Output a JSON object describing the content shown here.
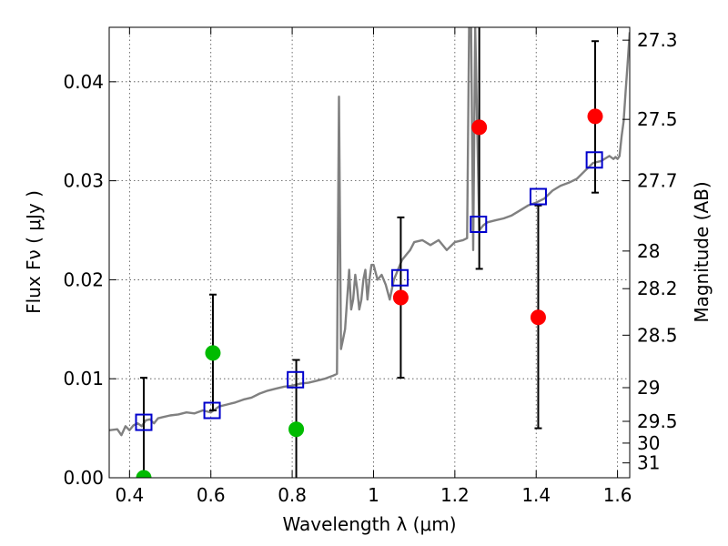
{
  "chart_data": {
    "type": "scatter",
    "xlabel": "Wavelength  λ (μm)",
    "ylabel": "Flux  Fν  ( μJy )",
    "y2label": "Magnitude (AB)",
    "xlim": [
      0.35,
      1.63
    ],
    "ylim": [
      0.0,
      0.0455
    ],
    "x_ticks": [
      0.4,
      0.6,
      0.8,
      1.0,
      1.2,
      1.4,
      1.6
    ],
    "x_tick_labels": [
      "0.4",
      "0.6",
      "0.8",
      "1",
      "1.2",
      "1.4",
      "1.6"
    ],
    "y_ticks": [
      0.0,
      0.01,
      0.02,
      0.03,
      0.04
    ],
    "y_tick_labels": [
      "0.00",
      "0.01",
      "0.02",
      "0.03",
      "0.04"
    ],
    "y2_ticks": [
      {
        "label": "27.3",
        "flux": 0.0442
      },
      {
        "label": "27.5",
        "flux": 0.0362
      },
      {
        "label": "27.7",
        "flux": 0.03
      },
      {
        "label": "28",
        "flux": 0.0229
      },
      {
        "label": "28.2",
        "flux": 0.0191
      },
      {
        "label": "28.5",
        "flux": 0.0144
      },
      {
        "label": "29",
        "flux": 0.0091
      },
      {
        "label": "29.5",
        "flux": 0.0057
      },
      {
        "label": "30",
        "flux": 0.0035
      },
      {
        "label": "31",
        "flux": 0.0015
      }
    ],
    "grid": true,
    "series": [
      {
        "marker": "line",
        "color": "#808080",
        "x": [
          0.35,
          0.37,
          0.38,
          0.39,
          0.4,
          0.41,
          0.42,
          0.43,
          0.44,
          0.45,
          0.46,
          0.47,
          0.48,
          0.5,
          0.52,
          0.54,
          0.56,
          0.58,
          0.6,
          0.62,
          0.64,
          0.66,
          0.68,
          0.7,
          0.72,
          0.74,
          0.76,
          0.78,
          0.8,
          0.82,
          0.84,
          0.86,
          0.88,
          0.9,
          0.91,
          0.915,
          0.92,
          0.925,
          0.93,
          0.94,
          0.945,
          0.95,
          0.955,
          0.96,
          0.965,
          0.97,
          0.975,
          0.98,
          0.985,
          0.99,
          0.995,
          1.0,
          1.01,
          1.02,
          1.03,
          1.04,
          1.05,
          1.06,
          1.07,
          1.08,
          1.09,
          1.1,
          1.12,
          1.14,
          1.16,
          1.18,
          1.2,
          1.22,
          1.23,
          1.235,
          1.24,
          1.245,
          1.25,
          1.26,
          1.27,
          1.28,
          1.3,
          1.32,
          1.34,
          1.36,
          1.38,
          1.4,
          1.42,
          1.44,
          1.46,
          1.48,
          1.5,
          1.52,
          1.54,
          1.56,
          1.58,
          1.59,
          1.595,
          1.6,
          1.605,
          1.61,
          1.615,
          1.62,
          1.625,
          1.63
        ],
        "y": [
          0.0048,
          0.0049,
          0.0043,
          0.0052,
          0.0048,
          0.0053,
          0.0055,
          0.0052,
          0.0058,
          0.0059,
          0.0055,
          0.006,
          0.0061,
          0.0063,
          0.0064,
          0.0066,
          0.0065,
          0.0068,
          0.0066,
          0.0072,
          0.0074,
          0.0076,
          0.0079,
          0.0081,
          0.0085,
          0.0088,
          0.009,
          0.0092,
          0.0093,
          0.0095,
          0.0096,
          0.0098,
          0.01,
          0.0103,
          0.0105,
          0.0385,
          0.013,
          0.014,
          0.015,
          0.021,
          0.017,
          0.018,
          0.0205,
          0.019,
          0.017,
          0.018,
          0.02,
          0.021,
          0.018,
          0.02,
          0.0215,
          0.0215,
          0.02,
          0.0205,
          0.0195,
          0.018,
          0.02,
          0.021,
          0.022,
          0.0225,
          0.023,
          0.0238,
          0.024,
          0.0235,
          0.024,
          0.023,
          0.0238,
          0.024,
          0.0242,
          0.0455,
          0.0455,
          0.023,
          0.0455,
          0.025,
          0.0255,
          0.0258,
          0.026,
          0.0262,
          0.0265,
          0.027,
          0.0275,
          0.0278,
          0.0282,
          0.029,
          0.0295,
          0.0298,
          0.0302,
          0.031,
          0.0318,
          0.032,
          0.0325,
          0.0322,
          0.0324,
          0.0322,
          0.0325,
          0.0345,
          0.036,
          0.039,
          0.042,
          0.045
        ]
      },
      {
        "marker": "square",
        "color": "#0000cc",
        "x": [
          0.435,
          0.603,
          0.808,
          1.065,
          1.258,
          1.405,
          1.543
        ],
        "y": [
          0.0056,
          0.0068,
          0.0099,
          0.0202,
          0.0256,
          0.0284,
          0.0321
        ]
      },
      {
        "marker": "circle",
        "color": "#00bb00",
        "x": [
          0.435,
          0.605,
          0.81
        ],
        "y": [
          0.0,
          0.0126,
          0.0049
        ]
      },
      {
        "marker": "circle",
        "color": "#ff0000",
        "x": [
          1.067,
          1.26,
          1.405,
          1.545
        ],
        "y": [
          0.0182,
          0.0354,
          0.0162,
          0.0365
        ]
      }
    ],
    "error_bars": [
      {
        "x": 0.435,
        "low": 0.0,
        "high": 0.0101
      },
      {
        "x": 0.605,
        "low": 0.0068,
        "high": 0.0185
      },
      {
        "x": 0.81,
        "low": 0.0,
        "high": 0.0119
      },
      {
        "x": 1.067,
        "low": 0.0101,
        "high": 0.0263
      },
      {
        "x": 1.26,
        "low": 0.0211,
        "high": 0.0455
      },
      {
        "x": 1.405,
        "low": 0.005,
        "high": 0.0275
      },
      {
        "x": 1.545,
        "low": 0.0288,
        "high": 0.0441
      }
    ]
  }
}
